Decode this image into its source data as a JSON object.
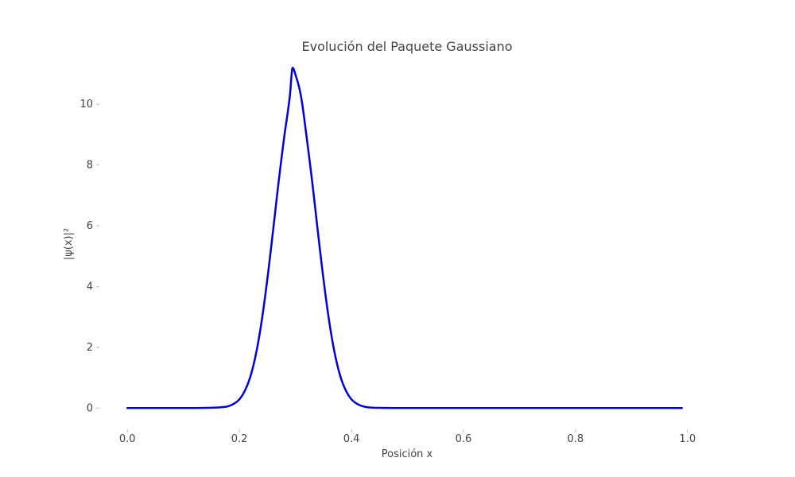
{
  "chart_data": {
    "type": "line",
    "title": "Evolución del Paquete Gaussiano",
    "xlabel": "Posición x",
    "ylabel": "|ψ(x)|²",
    "xlim": [
      -0.05,
      1.05
    ],
    "ylim": [
      -0.7,
      11.6
    ],
    "xticks": [
      0.0,
      0.2,
      0.4,
      0.6,
      0.8,
      1.0
    ],
    "xtick_labels": [
      "0.0",
      "0.2",
      "0.4",
      "0.6",
      "0.8",
      "1.0"
    ],
    "yticks": [
      0,
      2,
      4,
      6,
      8,
      10
    ],
    "ytick_labels": [
      "0",
      "2",
      "4",
      "6",
      "8",
      "10"
    ],
    "grid": false,
    "series": [
      {
        "color": "#0000dd",
        "x": [
          0.0,
          0.1,
          0.15,
          0.17,
          0.18,
          0.19,
          0.2,
          0.21,
          0.22,
          0.23,
          0.24,
          0.25,
          0.26,
          0.27,
          0.28,
          0.29,
          0.295,
          0.3,
          0.31,
          0.32,
          0.33,
          0.34,
          0.35,
          0.36,
          0.37,
          0.38,
          0.39,
          0.4,
          0.41,
          0.42,
          0.44,
          0.5,
          0.7,
          0.99
        ],
        "y": [
          0.0,
          0.0,
          0.01,
          0.03,
          0.06,
          0.14,
          0.29,
          0.58,
          1.06,
          1.82,
          2.89,
          4.26,
          5.82,
          7.44,
          8.92,
          10.26,
          11.2,
          10.98,
          10.26,
          8.92,
          7.44,
          5.82,
          4.26,
          2.89,
          1.82,
          1.06,
          0.58,
          0.29,
          0.14,
          0.06,
          0.01,
          0.0,
          0.0,
          0.0
        ]
      }
    ]
  }
}
